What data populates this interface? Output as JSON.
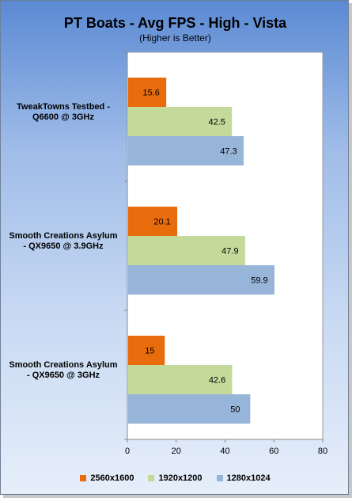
{
  "chart_data": {
    "type": "bar",
    "orientation": "horizontal",
    "title": "PT Boats - Avg FPS - High - Vista",
    "subtitle": "(Higher is Better)",
    "categories": [
      "TweakTowns Testbed - Q6600 @ 3GHz",
      "Smooth Creations Asylum - QX9650 @ 3.9GHz",
      "Smooth Creations Asylum - QX9650 @ 3GHz"
    ],
    "series": [
      {
        "name": "2560x1600",
        "color": "#e86c0c",
        "values": [
          15.6,
          20.1,
          15
        ]
      },
      {
        "name": "1920x1200",
        "color": "#c4da9a",
        "values": [
          42.5,
          47.9,
          42.6
        ]
      },
      {
        "name": "1280x1024",
        "color": "#97b4d9",
        "values": [
          47.3,
          59.9,
          50
        ]
      }
    ],
    "xlim": [
      0,
      80
    ],
    "xticks": [
      0,
      20,
      40,
      60,
      80
    ],
    "legend_position": "bottom"
  }
}
